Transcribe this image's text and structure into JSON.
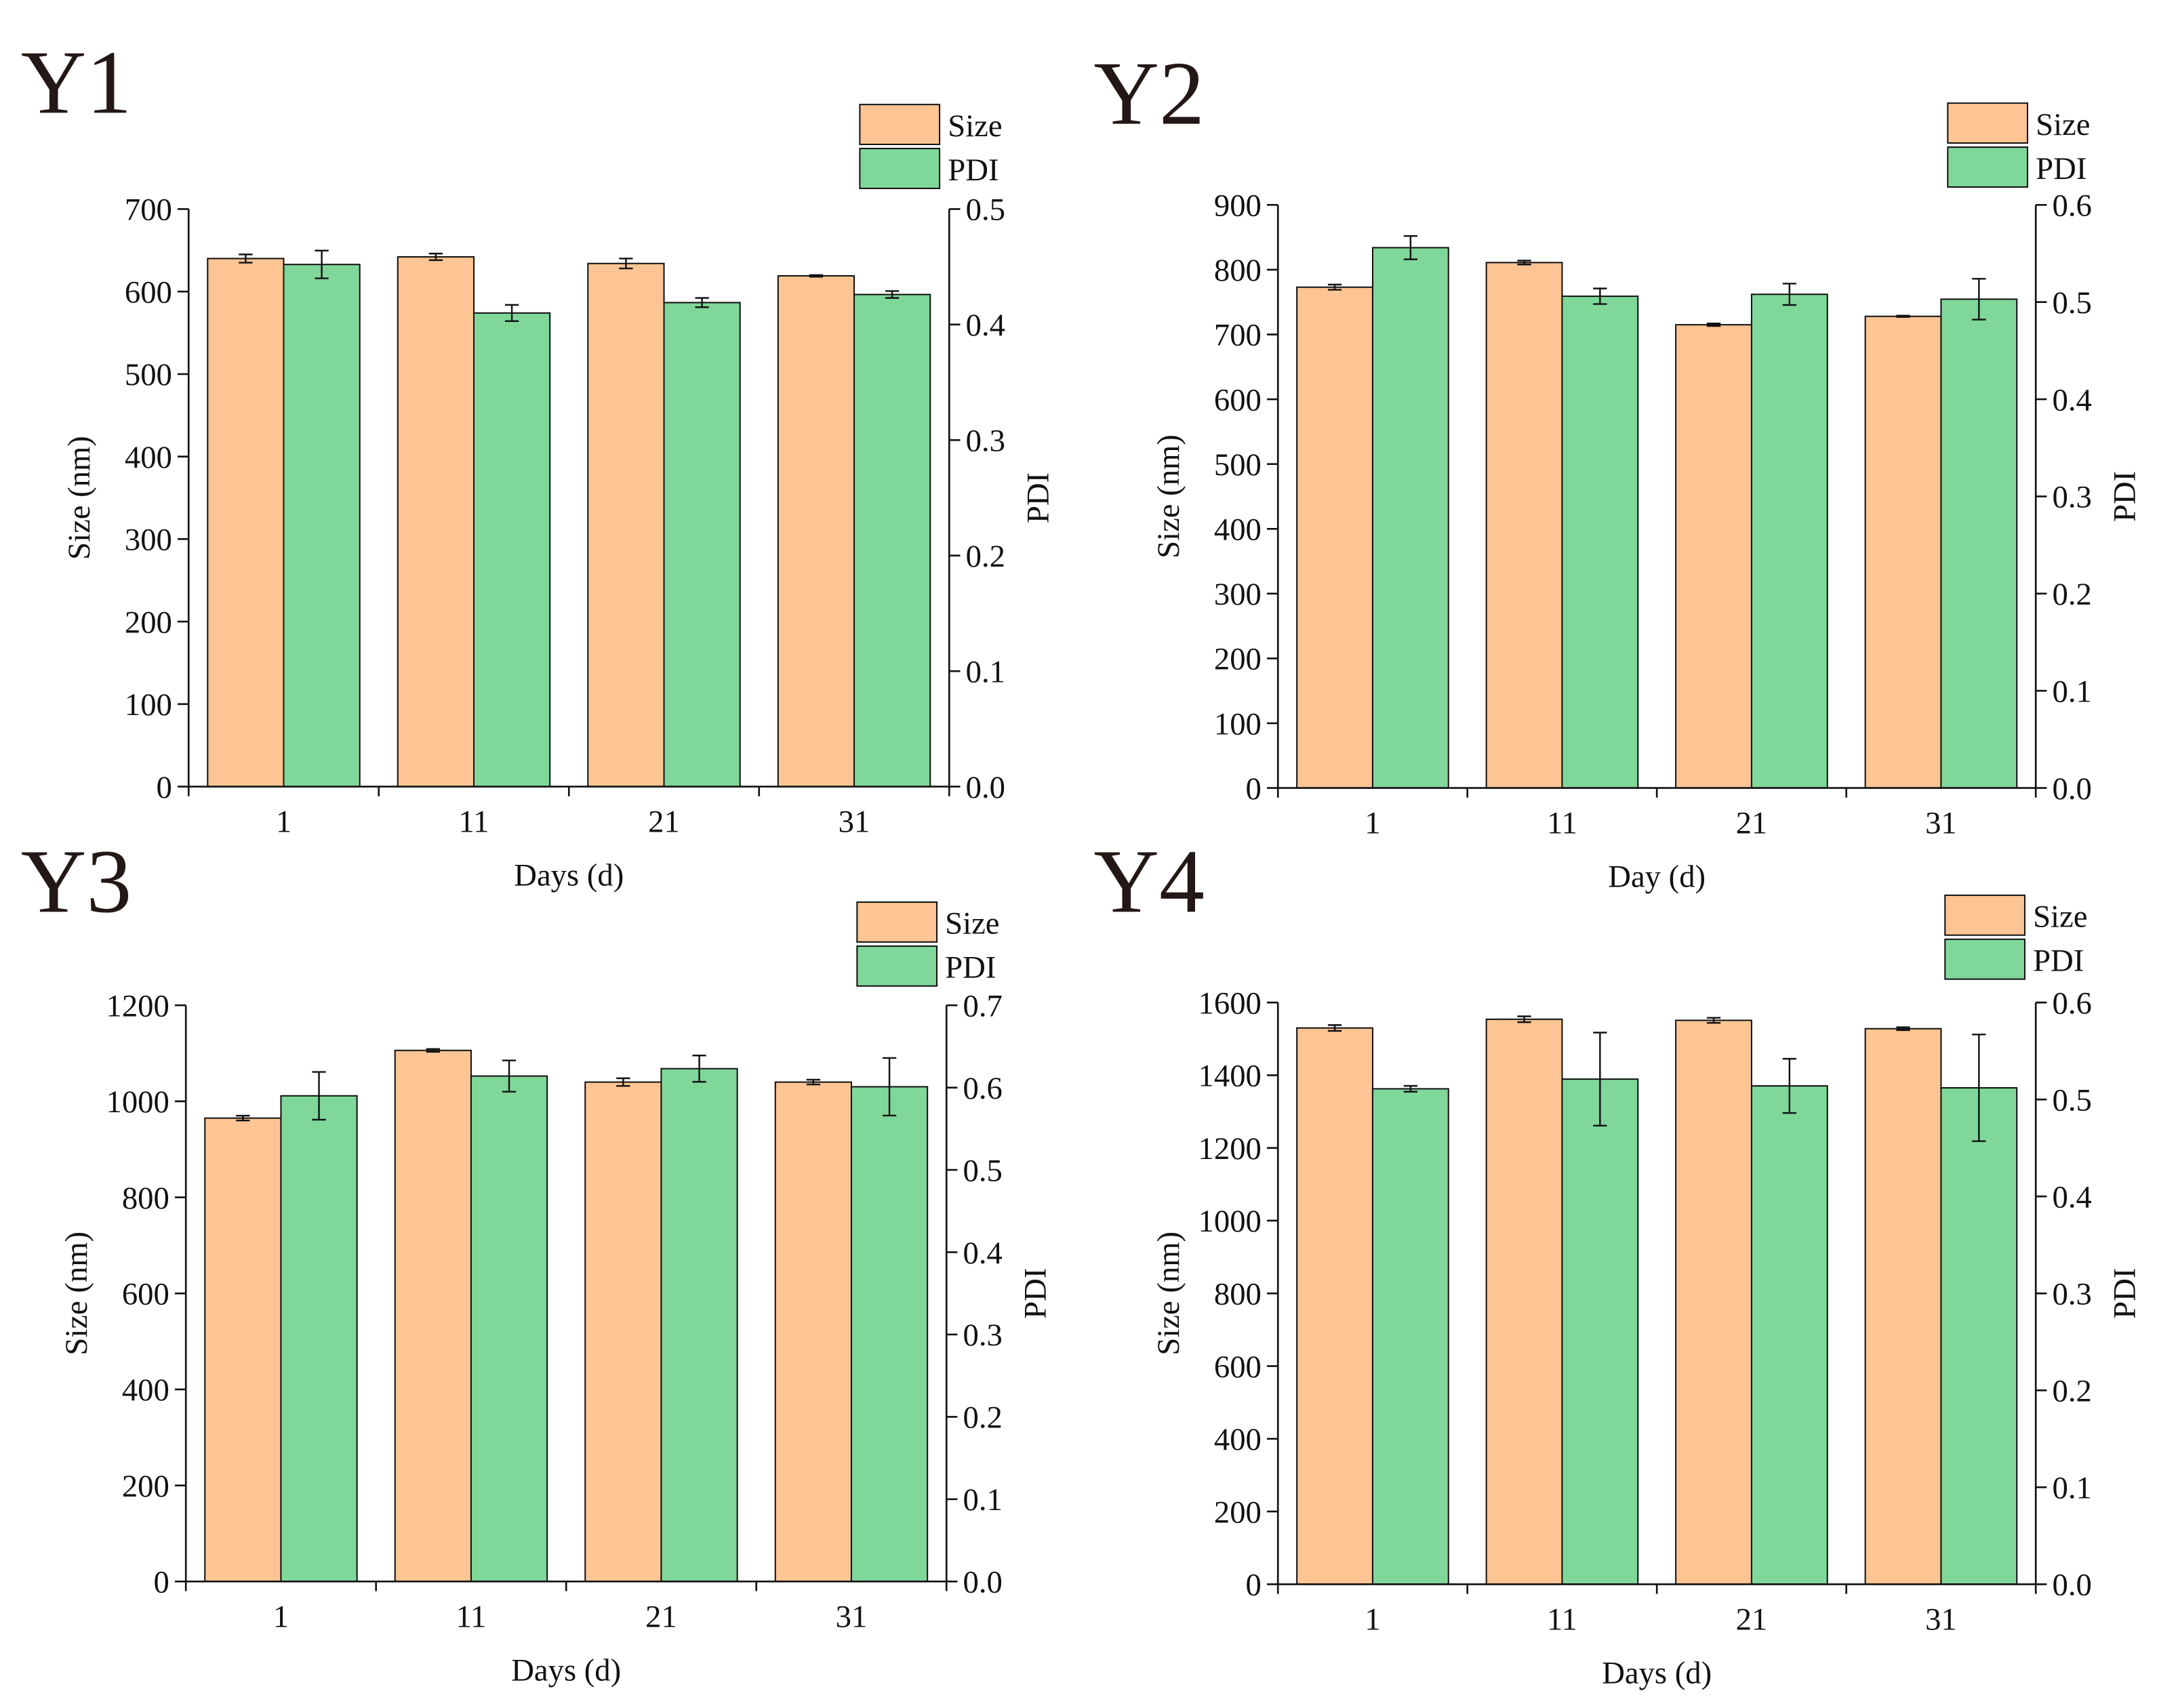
{
  "chart_data": [
    {
      "type": "bar",
      "panel_label": "Y1",
      "xlabel": "Days (d)",
      "ylabel": "Size (nm)",
      "y2label": "PDI",
      "legend": "upper right",
      "categories": [
        "1",
        "11",
        "21",
        "31"
      ],
      "series": [
        {
          "name": "Size",
          "color": "#fdc593",
          "values": [
            640,
            642,
            634,
            619
          ],
          "errors": [
            5,
            4,
            6,
            1
          ]
        },
        {
          "name": "PDI",
          "color": "#7fd89a",
          "axis": "y2",
          "values": [
            0.452,
            0.41,
            0.419,
            0.426
          ],
          "errors": [
            0.012,
            0.007,
            0.004,
            0.003
          ]
        }
      ],
      "ylim": [
        0,
        700
      ],
      "yticks": [
        0,
        100,
        200,
        300,
        400,
        500,
        600,
        700
      ],
      "y2lim": [
        0,
        0.5
      ],
      "y2ticks": [
        {
          "value": 0,
          "label": "0.0"
        },
        0.1,
        0.2,
        0.3,
        0.4,
        0.5
      ]
    },
    {
      "type": "bar",
      "panel_label": "Y2",
      "xlabel": "Day (d)",
      "ylabel": "Size (nm)",
      "y2label": "PDI",
      "legend": "upper right",
      "categories": [
        "1",
        "11",
        "21",
        "31"
      ],
      "series": [
        {
          "name": "Size",
          "color": "#fdc593",
          "values": [
            773,
            811,
            715,
            728
          ],
          "errors": [
            4,
            3,
            2,
            1
          ]
        },
        {
          "name": "PDI",
          "color": "#7fd89a",
          "axis": "y2",
          "values": [
            0.556,
            0.506,
            0.508,
            0.503
          ],
          "errors": [
            0.012,
            0.008,
            0.011,
            0.021
          ]
        }
      ],
      "ylim": [
        0,
        900
      ],
      "yticks": [
        0,
        100,
        200,
        300,
        400,
        500,
        600,
        700,
        800,
        900
      ],
      "y2lim": [
        0,
        0.6
      ],
      "y2ticks": [
        {
          "value": 0,
          "label": "0.0"
        },
        0.1,
        0.2,
        0.3,
        0.4,
        0.5,
        0.6
      ]
    },
    {
      "type": "bar",
      "panel_label": "Y3",
      "xlabel": "Days (d)",
      "ylabel": "Size (nm)",
      "y2label": "PDI",
      "legend": "upper right",
      "categories": [
        "1",
        "11",
        "21",
        "31"
      ],
      "series": [
        {
          "name": "Size",
          "color": "#fdc593",
          "values": [
            965,
            1106,
            1040,
            1040
          ],
          "errors": [
            5,
            3,
            8,
            5
          ]
        },
        {
          "name": "PDI",
          "color": "#7fd89a",
          "axis": "y2",
          "values": [
            0.59,
            0.614,
            0.623,
            0.601
          ],
          "errors": [
            0.029,
            0.019,
            0.016,
            0.035
          ]
        }
      ],
      "ylim": [
        0,
        1200
      ],
      "yticks": [
        0,
        200,
        400,
        600,
        800,
        1000,
        1200
      ],
      "y2lim": [
        0,
        0.7
      ],
      "y2ticks": [
        {
          "value": 0,
          "label": "0.0"
        },
        0.1,
        0.2,
        0.3,
        0.4,
        0.5,
        0.6,
        0.7
      ]
    },
    {
      "type": "bar",
      "panel_label": "Y4",
      "xlabel": "Days (d)",
      "ylabel": "Size (nm)",
      "y2label": "PDI",
      "legend": "upper right",
      "categories": [
        "1",
        "11",
        "21",
        "31"
      ],
      "series": [
        {
          "name": "Size",
          "color": "#fdc593",
          "values": [
            1530,
            1554,
            1551,
            1528
          ],
          "errors": [
            8,
            8,
            7,
            4
          ]
        },
        {
          "name": "PDI",
          "color": "#7fd89a",
          "axis": "y2",
          "values": [
            0.511,
            0.521,
            0.514,
            0.512
          ],
          "errors": [
            0.003,
            0.048,
            0.028,
            0.055
          ]
        }
      ],
      "ylim": [
        0,
        1600
      ],
      "yticks": [
        0,
        200,
        400,
        600,
        800,
        1000,
        1200,
        1400,
        1600
      ],
      "y2lim": [
        0,
        0.6
      ],
      "y2ticks": [
        {
          "value": 0,
          "label": "0.0"
        },
        0.1,
        0.2,
        0.3,
        0.4,
        0.5,
        0.6
      ]
    }
  ]
}
